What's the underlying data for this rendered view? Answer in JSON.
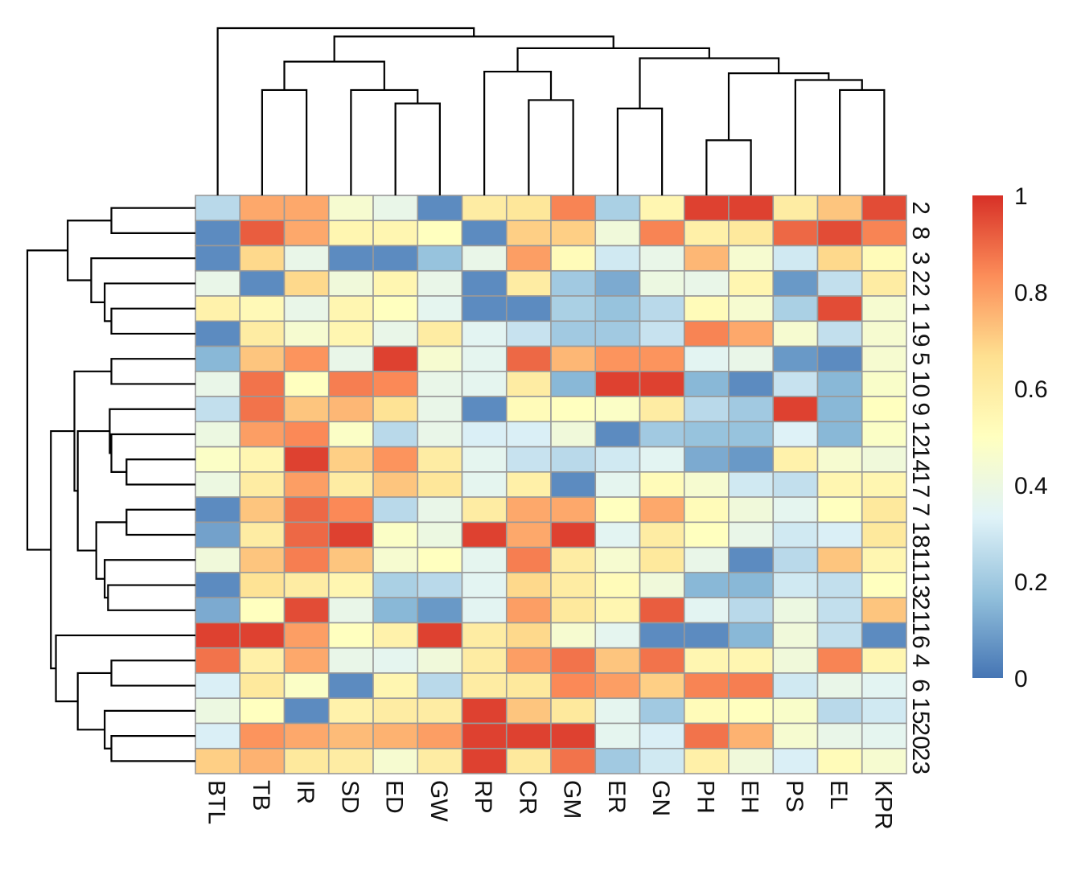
{
  "chart_data": {
    "type": "heatmap",
    "title": "",
    "xlabel": "",
    "ylabel": "",
    "columns": [
      "BTL",
      "TB",
      "IR",
      "SD",
      "ED",
      "GW",
      "RP",
      "CR",
      "GM",
      "ER",
      "GN",
      "PH",
      "EH",
      "PS",
      "EL",
      "KPR"
    ],
    "rows": [
      "2",
      "8",
      "3",
      "22",
      "1",
      "19",
      "5",
      "10",
      "9",
      "12",
      "14",
      "17",
      "7",
      "18",
      "11",
      "13",
      "21",
      "16",
      "4",
      "6",
      "15",
      "20",
      "23"
    ],
    "values": [
      [
        0.25,
        0.78,
        0.78,
        0.45,
        0.38,
        0.05,
        0.6,
        0.63,
        0.85,
        0.22,
        0.55,
        0.97,
        0.97,
        0.6,
        0.72,
        0.95
      ],
      [
        0.05,
        0.92,
        0.78,
        0.55,
        0.55,
        0.5,
        0.05,
        0.7,
        0.7,
        0.42,
        0.85,
        0.58,
        0.62,
        0.9,
        0.95,
        0.85
      ],
      [
        0.05,
        0.68,
        0.38,
        0.05,
        0.05,
        0.18,
        0.38,
        0.8,
        0.52,
        0.3,
        0.38,
        0.75,
        0.45,
        0.3,
        0.68,
        0.52
      ],
      [
        0.38,
        0.05,
        0.68,
        0.42,
        0.55,
        0.38,
        0.05,
        0.6,
        0.2,
        0.12,
        0.4,
        0.38,
        0.55,
        0.08,
        0.27,
        0.6
      ],
      [
        0.57,
        0.53,
        0.38,
        0.55,
        0.5,
        0.36,
        0.05,
        0.05,
        0.22,
        0.18,
        0.25,
        0.52,
        0.45,
        0.22,
        0.95,
        0.45
      ],
      [
        0.05,
        0.6,
        0.45,
        0.55,
        0.38,
        0.6,
        0.35,
        0.28,
        0.2,
        0.2,
        0.28,
        0.85,
        0.78,
        0.45,
        0.27,
        0.45
      ],
      [
        0.15,
        0.72,
        0.82,
        0.38,
        0.97,
        0.45,
        0.36,
        0.9,
        0.75,
        0.82,
        0.82,
        0.35,
        0.38,
        0.08,
        0.05,
        0.45
      ],
      [
        0.38,
        0.88,
        0.5,
        0.86,
        0.84,
        0.38,
        0.36,
        0.6,
        0.15,
        0.97,
        0.97,
        0.15,
        0.05,
        0.28,
        0.15,
        0.47
      ],
      [
        0.27,
        0.88,
        0.72,
        0.75,
        0.65,
        0.38,
        0.05,
        0.52,
        0.5,
        0.48,
        0.6,
        0.25,
        0.2,
        0.97,
        0.15,
        0.5
      ],
      [
        0.4,
        0.8,
        0.84,
        0.48,
        0.25,
        0.38,
        0.32,
        0.32,
        0.42,
        0.05,
        0.2,
        0.18,
        0.18,
        0.33,
        0.15,
        0.48
      ],
      [
        0.48,
        0.55,
        0.97,
        0.7,
        0.82,
        0.6,
        0.36,
        0.28,
        0.25,
        0.3,
        0.35,
        0.12,
        0.08,
        0.57,
        0.45,
        0.42
      ],
      [
        0.4,
        0.6,
        0.8,
        0.6,
        0.72,
        0.63,
        0.36,
        0.58,
        0.05,
        0.36,
        0.52,
        0.45,
        0.3,
        0.27,
        0.55,
        0.55
      ],
      [
        0.05,
        0.72,
        0.9,
        0.84,
        0.25,
        0.38,
        0.6,
        0.78,
        0.78,
        0.5,
        0.78,
        0.52,
        0.42,
        0.36,
        0.5,
        0.62
      ],
      [
        0.1,
        0.6,
        0.9,
        0.97,
        0.48,
        0.4,
        0.97,
        0.78,
        0.97,
        0.35,
        0.6,
        0.5,
        0.38,
        0.3,
        0.32,
        0.62
      ],
      [
        0.42,
        0.72,
        0.86,
        0.72,
        0.45,
        0.5,
        0.36,
        0.86,
        0.6,
        0.45,
        0.62,
        0.38,
        0.05,
        0.25,
        0.72,
        0.55
      ],
      [
        0.05,
        0.65,
        0.6,
        0.55,
        0.22,
        0.25,
        0.35,
        0.68,
        0.6,
        0.52,
        0.42,
        0.15,
        0.15,
        0.3,
        0.27,
        0.5
      ],
      [
        0.12,
        0.5,
        0.95,
        0.38,
        0.15,
        0.08,
        0.35,
        0.8,
        0.62,
        0.55,
        0.92,
        0.35,
        0.25,
        0.4,
        0.27,
        0.72
      ],
      [
        0.97,
        0.97,
        0.8,
        0.5,
        0.57,
        0.97,
        0.6,
        0.68,
        0.45,
        0.36,
        0.05,
        0.05,
        0.15,
        0.42,
        0.27,
        0.05
      ],
      [
        0.88,
        0.58,
        0.78,
        0.38,
        0.36,
        0.42,
        0.6,
        0.8,
        0.88,
        0.72,
        0.88,
        0.55,
        0.55,
        0.42,
        0.85,
        0.55
      ],
      [
        0.32,
        0.62,
        0.48,
        0.05,
        0.55,
        0.25,
        0.6,
        0.62,
        0.84,
        0.8,
        0.7,
        0.85,
        0.86,
        0.3,
        0.38,
        0.35
      ],
      [
        0.4,
        0.5,
        0.05,
        0.57,
        0.6,
        0.6,
        0.97,
        0.72,
        0.62,
        0.36,
        0.2,
        0.52,
        0.5,
        0.47,
        0.25,
        0.3
      ],
      [
        0.32,
        0.82,
        0.78,
        0.74,
        0.76,
        0.8,
        0.97,
        0.97,
        0.97,
        0.36,
        0.32,
        0.88,
        0.76,
        0.45,
        0.38,
        0.36
      ],
      [
        0.7,
        0.76,
        0.62,
        0.6,
        0.45,
        0.6,
        0.97,
        0.62,
        0.88,
        0.2,
        0.3,
        0.58,
        0.42,
        0.32,
        0.52,
        0.45
      ]
    ],
    "value_range": [
      0,
      1
    ],
    "colorbar": {
      "ticks": [
        "0",
        "0.2",
        "0.4",
        "0.6",
        "0.8",
        "1"
      ],
      "tick_values": [
        0,
        0.2,
        0.4,
        0.6,
        0.8,
        1
      ],
      "colors": [
        "#4575B4",
        "#91BFDB",
        "#E0F3F8",
        "#FFFFBF",
        "#FEE090",
        "#FC8D59",
        "#D73027"
      ],
      "placement": "right"
    },
    "cell_border_color": "#999999",
    "column_dendrogram": {
      "placement": "top",
      "merges": [
        {
          "left": "ED",
          "right": "GW",
          "height": 0.55
        },
        {
          "left": "SD",
          "right": "ED+GW",
          "height": 0.63
        },
        {
          "left": "TB",
          "right": "IR",
          "height": 0.63
        },
        {
          "left": "TB+IR",
          "right": "SD+ED+GW",
          "height": 0.8
        },
        {
          "left": "CR",
          "right": "GM",
          "height": 0.57
        },
        {
          "left": "RP",
          "right": "CR+GM",
          "height": 0.74
        },
        {
          "left": "ER",
          "right": "GN",
          "height": 0.52
        },
        {
          "left": "PH",
          "right": "EH",
          "height": 0.33
        },
        {
          "left": "EL",
          "right": "KPR",
          "height": 0.63
        },
        {
          "left": "PS",
          "right": "EL+KPR",
          "height": 0.69
        },
        {
          "left": "PH+EH",
          "right": "PS+EL+KPR",
          "height": 0.73
        },
        {
          "left": "ER+GN",
          "right": "PH+EH+PS+EL+KPR",
          "height": 0.82
        },
        {
          "left": "RP+CR+GM",
          "right": "ER..KPR",
          "height": 0.88
        },
        {
          "left": "TB..GW",
          "right": "RP..KPR",
          "height": 0.95
        },
        {
          "left": "BTL",
          "right": "TB..KPR",
          "height": 1.0
        }
      ]
    },
    "row_dendrogram": {
      "placement": "left",
      "merges": [
        {
          "left": "2",
          "right": "8",
          "height": 0.5
        },
        {
          "left": "1",
          "right": "19",
          "height": 0.5
        },
        {
          "left": "22",
          "right": "1+19",
          "height": 0.54
        },
        {
          "left": "3",
          "right": "22+1+19",
          "height": 0.62
        },
        {
          "left": "2+8",
          "right": "3..19",
          "height": 0.76
        },
        {
          "left": "5",
          "right": "10",
          "height": 0.5
        },
        {
          "left": "14",
          "right": "17",
          "height": 0.41
        },
        {
          "left": "12",
          "right": "14+17",
          "height": 0.5
        },
        {
          "left": "9",
          "right": "12+14+17",
          "height": 0.51
        },
        {
          "left": "7",
          "right": "18",
          "height": 0.41
        },
        {
          "left": "13",
          "right": "21",
          "height": 0.52
        },
        {
          "left": "11",
          "right": "13+21",
          "height": 0.54
        },
        {
          "left": "7+18",
          "right": "11+13+21",
          "height": 0.59
        },
        {
          "left": "9..17",
          "right": "7..21",
          "height": 0.7
        },
        {
          "left": "5+10",
          "right": "9..21",
          "height": 0.72
        },
        {
          "left": "4",
          "right": "6",
          "height": 0.5
        },
        {
          "left": "20",
          "right": "23",
          "height": 0.5
        },
        {
          "left": "15",
          "right": "20+23",
          "height": 0.54
        },
        {
          "left": "4+6",
          "right": "15+20+23",
          "height": 0.7
        },
        {
          "left": "16",
          "right": "4..23",
          "height": 0.83
        },
        {
          "left": "5..21",
          "right": "16..23",
          "height": 0.86
        },
        {
          "left": "2..19",
          "right": "5..23",
          "height": 1.0
        }
      ]
    }
  }
}
